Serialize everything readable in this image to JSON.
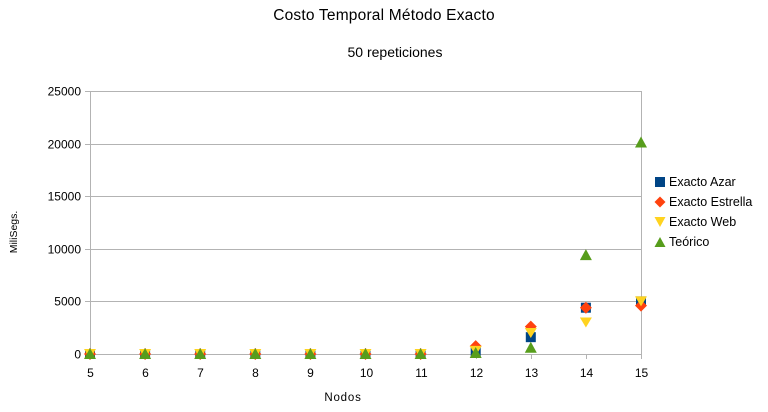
{
  "chart_data": {
    "type": "scatter",
    "title": "Costo Temporal Método Exacto",
    "subtitle": "50 repeticiones",
    "xlabel": "Nodos",
    "ylabel": "MiliSegs.",
    "x": [
      5,
      6,
      7,
      8,
      9,
      10,
      11,
      12,
      13,
      14,
      15
    ],
    "xlim": [
      5,
      15
    ],
    "ylim": [
      0,
      25000
    ],
    "yticks": [
      0,
      5000,
      10000,
      15000,
      20000,
      25000
    ],
    "grid": true,
    "legend_position": "right",
    "series": [
      {
        "name": "Exacto Azar",
        "marker": "square",
        "color": "#004586",
        "values": [
          0,
          0,
          0,
          0,
          0,
          0,
          0,
          200,
          1600,
          4400,
          5000
        ]
      },
      {
        "name": "Exacto Estrella",
        "marker": "diamond",
        "color": "#ff420e",
        "values": [
          0,
          0,
          0,
          0,
          0,
          0,
          0,
          750,
          2600,
          4400,
          4600
        ]
      },
      {
        "name": "Exacto Web",
        "marker": "triangle-down",
        "color": "#ffd320",
        "values": [
          0,
          0,
          0,
          0,
          0,
          0,
          0,
          300,
          2000,
          3000,
          5000
        ]
      },
      {
        "name": "Teórico",
        "marker": "triangle-up",
        "color": "#579d1c",
        "values": [
          0,
          0,
          0,
          0,
          0,
          0,
          0,
          100,
          600,
          9400,
          20100
        ]
      }
    ]
  }
}
